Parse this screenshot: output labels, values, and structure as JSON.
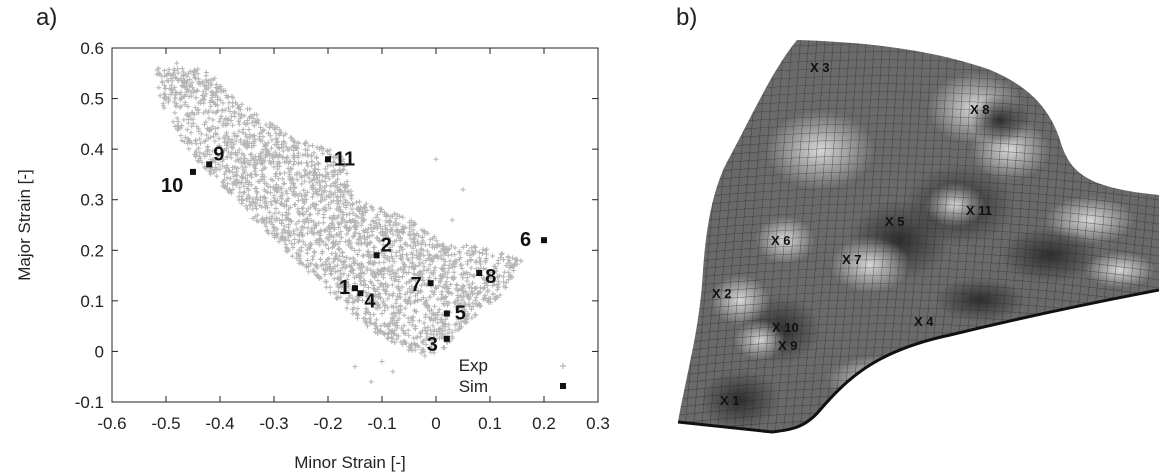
{
  "panels": {
    "a": "a)",
    "b": "b)"
  },
  "chart_data": {
    "type": "scatter",
    "xlabel": "Minor Strain [-]",
    "ylabel": "Major Strain [-]",
    "xlim": [
      -0.6,
      0.3
    ],
    "ylim": [
      -0.1,
      0.6
    ],
    "xticks": [
      "-0.6",
      "-0.5",
      "-0.4",
      "-0.3",
      "-0.2",
      "-0.1",
      "0",
      "0.1",
      "0.2",
      "0.3"
    ],
    "yticks": [
      "-0.1",
      "0",
      "0.1",
      "0.2",
      "0.3",
      "0.4",
      "0.5",
      "0.6"
    ],
    "grid": false,
    "legend_position": "bottom-right",
    "series": [
      {
        "name": "Exp",
        "marker": "plus",
        "color": "#b5b5b5",
        "region": [
          [
            -0.52,
            0.56
          ],
          [
            -0.43,
            0.56
          ],
          [
            -0.36,
            0.49
          ],
          [
            -0.26,
            0.42
          ],
          [
            -0.19,
            0.4
          ],
          [
            -0.17,
            0.38
          ],
          [
            -0.15,
            0.3
          ],
          [
            -0.06,
            0.27
          ],
          [
            0.02,
            0.21
          ],
          [
            0.08,
            0.21
          ],
          [
            0.16,
            0.18
          ],
          [
            0.12,
            0.11
          ],
          [
            0.06,
            0.06
          ],
          [
            0.01,
            0.0
          ],
          [
            -0.02,
            -0.01
          ],
          [
            -0.08,
            0.01
          ],
          [
            -0.14,
            0.06
          ],
          [
            -0.22,
            0.14
          ],
          [
            -0.32,
            0.24
          ],
          [
            -0.4,
            0.33
          ],
          [
            -0.47,
            0.41
          ],
          [
            -0.51,
            0.49
          ]
        ],
        "points": [
          [
            -0.48,
            0.57
          ],
          [
            -0.41,
            0.54
          ],
          [
            -0.15,
            -0.03
          ],
          [
            -0.12,
            -0.06
          ],
          [
            -0.1,
            -0.02
          ],
          [
            0.0,
            0.38
          ],
          [
            0.05,
            0.32
          ],
          [
            0.03,
            0.26
          ],
          [
            -0.08,
            -0.04
          ],
          [
            0.13,
            0.17
          ]
        ]
      },
      {
        "name": "Sim",
        "marker": "square",
        "color": "#111111",
        "points": [
          {
            "label": "1",
            "x": -0.15,
            "y": 0.125
          },
          {
            "label": "2",
            "x": -0.11,
            "y": 0.19
          },
          {
            "label": "3",
            "x": 0.02,
            "y": 0.025
          },
          {
            "label": "4",
            "x": -0.14,
            "y": 0.115
          },
          {
            "label": "5",
            "x": 0.02,
            "y": 0.075
          },
          {
            "label": "6",
            "x": 0.2,
            "y": 0.22
          },
          {
            "label": "7",
            "x": -0.01,
            "y": 0.135
          },
          {
            "label": "8",
            "x": 0.08,
            "y": 0.155
          },
          {
            "label": "9",
            "x": -0.42,
            "y": 0.37
          },
          {
            "label": "10",
            "x": -0.45,
            "y": 0.355
          },
          {
            "label": "11",
            "x": -0.2,
            "y": 0.38
          }
        ]
      }
    ]
  },
  "mesh_markers": [
    {
      "label": "X 3"
    },
    {
      "label": "X 8"
    },
    {
      "label": "X 5"
    },
    {
      "label": "X 11"
    },
    {
      "label": "X 6"
    },
    {
      "label": "X 7"
    },
    {
      "label": "X 2"
    },
    {
      "label": "X 4"
    },
    {
      "label": "X 10"
    },
    {
      "label": "X 9"
    },
    {
      "label": "X 1"
    }
  ]
}
